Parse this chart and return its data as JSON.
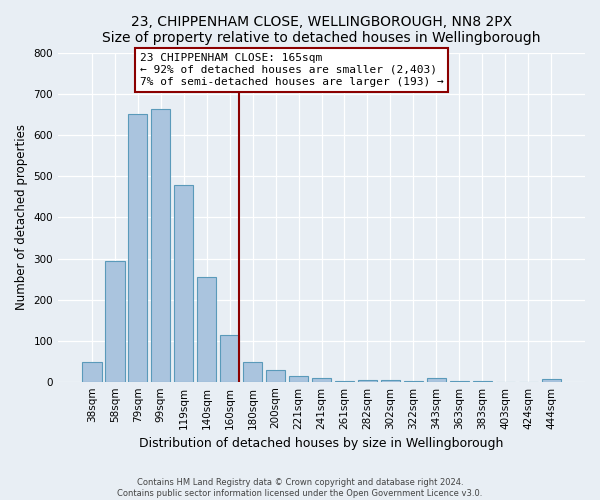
{
  "title": "23, CHIPPENHAM CLOSE, WELLINGBOROUGH, NN8 2PX",
  "subtitle": "Size of property relative to detached houses in Wellingborough",
  "xlabel": "Distribution of detached houses by size in Wellingborough",
  "ylabel": "Number of detached properties",
  "bar_labels": [
    "38sqm",
    "58sqm",
    "79sqm",
    "99sqm",
    "119sqm",
    "140sqm",
    "160sqm",
    "180sqm",
    "200sqm",
    "221sqm",
    "241sqm",
    "261sqm",
    "282sqm",
    "302sqm",
    "322sqm",
    "343sqm",
    "363sqm",
    "383sqm",
    "403sqm",
    "424sqm",
    "444sqm"
  ],
  "bar_values": [
    47,
    293,
    652,
    665,
    478,
    254,
    113,
    48,
    29,
    14,
    10,
    1,
    5,
    3,
    2,
    8,
    1,
    1,
    0,
    0,
    6
  ],
  "bar_color": "#aac4de",
  "bar_edge_color": "#5a9aba",
  "vline_color": "#8b0000",
  "vline_index": 6,
  "annotation_title": "23 CHIPPENHAM CLOSE: 165sqm",
  "annotation_line1": "← 92% of detached houses are smaller (2,403)",
  "annotation_line2": "7% of semi-detached houses are larger (193) →",
  "annotation_box_color": "#8b0000",
  "ylim": [
    0,
    800
  ],
  "yticks": [
    0,
    100,
    200,
    300,
    400,
    500,
    600,
    700,
    800
  ],
  "footer_line1": "Contains HM Land Registry data © Crown copyright and database right 2024.",
  "footer_line2": "Contains public sector information licensed under the Open Government Licence v3.0.",
  "bg_color": "#e8eef4",
  "plot_bg_color": "#e8eef4",
  "title_fontsize": 10,
  "tick_label_fontsize": 7.5,
  "ylabel_fontsize": 8.5,
  "xlabel_fontsize": 9
}
